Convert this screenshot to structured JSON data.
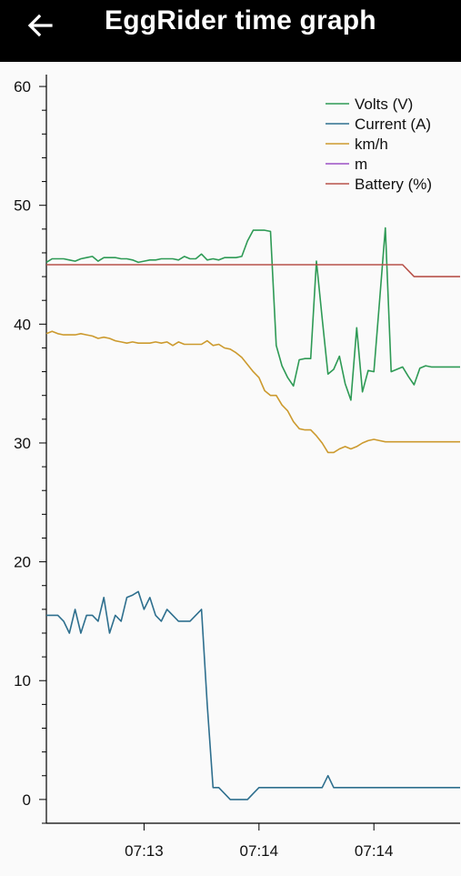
{
  "header": {
    "title": "EggRider time graph",
    "back_icon": "arrow-left-icon"
  },
  "colors": {
    "app_bar": "#000000",
    "volts": "#2e9a55",
    "current": "#2e6f8e",
    "speed": "#cc9a2e",
    "distance": "#9b4fc4",
    "battery": "#b8524a"
  },
  "chart_data": {
    "type": "line",
    "title": "",
    "xlabel": "",
    "ylabel": "",
    "ylim": [
      -2,
      61
    ],
    "yticks": [
      0,
      10,
      20,
      30,
      40,
      50,
      60
    ],
    "y_minor_step": 2,
    "xlim": [
      0,
      72
    ],
    "xticks": [
      {
        "x": 17,
        "label": "07:13"
      },
      {
        "x": 37,
        "label": "07:14"
      },
      {
        "x": 57,
        "label": "07:14"
      }
    ],
    "grid": false,
    "legend_position": "top-right",
    "series": [
      {
        "name": "Volts (V)",
        "color": "#2e9a55",
        "x": [
          0,
          1,
          2,
          3,
          4,
          5,
          6,
          7,
          8,
          9,
          10,
          11,
          12,
          13,
          14,
          15,
          16,
          17,
          18,
          19,
          20,
          21,
          22,
          23,
          24,
          25,
          26,
          27,
          28,
          29,
          30,
          31,
          32,
          33,
          34,
          35,
          36,
          37,
          38,
          39,
          40,
          41,
          42,
          43,
          44,
          45,
          46,
          47,
          48,
          49,
          50,
          51,
          52,
          53,
          54,
          55,
          56,
          57,
          58,
          59,
          60,
          61,
          62,
          63,
          64,
          65,
          66,
          67,
          68,
          69,
          70,
          71,
          72
        ],
        "values": [
          45.2,
          45.5,
          45.5,
          45.5,
          45.4,
          45.3,
          45.5,
          45.6,
          45.7,
          45.3,
          45.6,
          45.6,
          45.6,
          45.5,
          45.5,
          45.4,
          45.2,
          45.3,
          45.4,
          45.4,
          45.5,
          45.5,
          45.5,
          45.4,
          45.7,
          45.5,
          45.5,
          45.9,
          45.4,
          45.5,
          45.4,
          45.6,
          45.6,
          45.6,
          45.7,
          47.0,
          47.9,
          47.9,
          47.9,
          47.8,
          38.2,
          36.5,
          35.5,
          34.8,
          37.0,
          37.1,
          37.1,
          45.3,
          40.5,
          35.8,
          36.2,
          37.3,
          35.0,
          33.6,
          39.7,
          34.3,
          36.1,
          36.0,
          42.0,
          48.1,
          36.0,
          36.2,
          36.4,
          35.6,
          34.9,
          36.3,
          36.5,
          36.4,
          36.4,
          36.4,
          36.4,
          36.4,
          36.4
        ]
      },
      {
        "name": "Current (A)",
        "color": "#2e6f8e",
        "x": [
          0,
          1,
          2,
          3,
          4,
          5,
          6,
          7,
          8,
          9,
          10,
          11,
          12,
          13,
          14,
          15,
          16,
          17,
          18,
          19,
          20,
          21,
          22,
          23,
          24,
          25,
          26,
          27,
          28,
          29,
          30,
          31,
          32,
          33,
          34,
          35,
          36,
          37,
          38,
          39,
          40,
          41,
          42,
          43,
          44,
          45,
          46,
          47,
          48,
          49,
          50,
          51,
          52,
          53,
          54,
          55,
          56,
          57,
          58,
          59,
          60,
          61,
          62,
          63,
          64,
          65,
          66,
          67,
          68,
          69,
          70,
          71,
          72
        ],
        "values": [
          15.5,
          15.5,
          15.5,
          15.0,
          14.0,
          16.0,
          14.0,
          15.5,
          15.5,
          15.0,
          17.0,
          14.0,
          15.5,
          15.0,
          17.0,
          17.2,
          17.5,
          16.0,
          17.0,
          15.5,
          15.0,
          16.0,
          15.5,
          15.0,
          15.0,
          15.0,
          15.5,
          16.0,
          8.0,
          1.0,
          1.0,
          0.5,
          0.0,
          0.0,
          0.0,
          0.0,
          0.5,
          1.0,
          1.0,
          1.0,
          1.0,
          1.0,
          1.0,
          1.0,
          1.0,
          1.0,
          1.0,
          1.0,
          1.0,
          2.0,
          1.0,
          1.0,
          1.0,
          1.0,
          1.0,
          1.0,
          1.0,
          1.0,
          1.0,
          1.0,
          1.0,
          1.0,
          1.0,
          1.0,
          1.0,
          1.0,
          1.0,
          1.0,
          1.0,
          1.0,
          1.0,
          1.0,
          1.0
        ]
      },
      {
        "name": "km/h",
        "color": "#cc9a2e",
        "x": [
          0,
          1,
          2,
          3,
          4,
          5,
          6,
          7,
          8,
          9,
          10,
          11,
          12,
          13,
          14,
          15,
          16,
          17,
          18,
          19,
          20,
          21,
          22,
          23,
          24,
          25,
          26,
          27,
          28,
          29,
          30,
          31,
          32,
          33,
          34,
          35,
          36,
          37,
          38,
          39,
          40,
          41,
          42,
          43,
          44,
          45,
          46,
          47,
          48,
          49,
          50,
          51,
          52,
          53,
          54,
          55,
          56,
          57,
          58,
          59,
          60,
          61,
          62,
          63,
          64,
          65,
          66,
          67,
          68,
          69,
          70,
          71,
          72
        ],
        "values": [
          39.2,
          39.4,
          39.2,
          39.1,
          39.1,
          39.1,
          39.2,
          39.1,
          39.0,
          38.8,
          38.9,
          38.8,
          38.6,
          38.5,
          38.4,
          38.5,
          38.4,
          38.4,
          38.4,
          38.5,
          38.4,
          38.5,
          38.2,
          38.5,
          38.3,
          38.3,
          38.3,
          38.3,
          38.6,
          38.2,
          38.3,
          38.0,
          37.9,
          37.6,
          37.2,
          36.6,
          36.0,
          35.5,
          34.4,
          34.0,
          34.0,
          33.2,
          32.7,
          31.8,
          31.2,
          31.1,
          31.1,
          30.6,
          30.0,
          29.2,
          29.2,
          29.5,
          29.7,
          29.5,
          29.7,
          30.0,
          30.2,
          30.3,
          30.2,
          30.1,
          30.1,
          30.1,
          30.1,
          30.1,
          30.1,
          30.1,
          30.1,
          30.1,
          30.1,
          30.1,
          30.1,
          30.1,
          30.1
        ]
      },
      {
        "name": "m",
        "color": "#9b4fc4",
        "x": [],
        "values": []
      },
      {
        "name": "Battery (%)",
        "color": "#b8524a",
        "x": [
          0,
          62,
          64,
          72
        ],
        "values": [
          45,
          45,
          44,
          44
        ]
      }
    ]
  }
}
